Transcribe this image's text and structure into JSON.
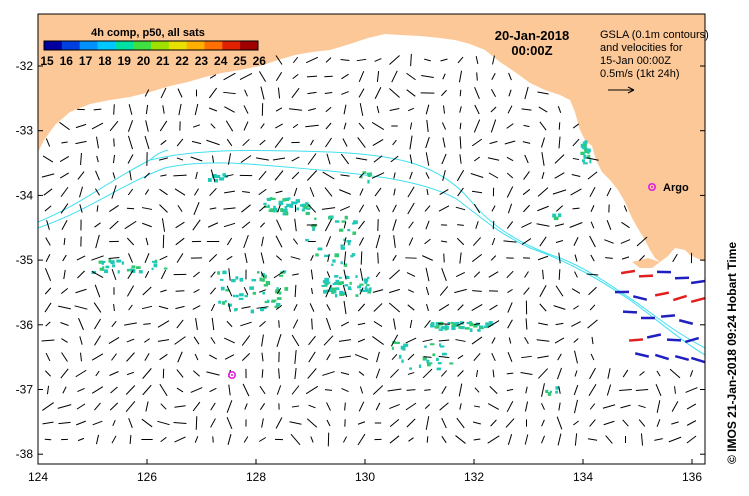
{
  "map": {
    "date_line1": "20-Jan-2018",
    "date_line2": "00:00Z",
    "colorbar_title": "4h comp, p50, all sats",
    "colorbar_ticks": [
      "15",
      "16",
      "17",
      "18",
      "19",
      "20",
      "21",
      "22",
      "23",
      "24",
      "25",
      "26"
    ],
    "colorbar_colors": [
      "#0000a0",
      "#0040e0",
      "#0090ff",
      "#00c8ff",
      "#00e0a0",
      "#40e040",
      "#a0e000",
      "#e8e000",
      "#ffb000",
      "#ff7000",
      "#e02000",
      "#a00000"
    ],
    "gsla_text": [
      "GSLA (0.1m contours)",
      "and velocities for",
      "15-Jan 00:00Z",
      "0.5m/s (1kt 24h)"
    ],
    "argo_label": "Argo",
    "credit": "© IMOS 21-Jan-2018 09:24 Hobart Time",
    "lon_ticks": [
      "124",
      "126",
      "128",
      "130",
      "132",
      "134",
      "136"
    ],
    "lat_ticks": [
      "-32",
      "-33",
      "-34",
      "-35",
      "-36",
      "-37",
      "-38"
    ],
    "land_color": "#fcc898",
    "contour_color": "#40e0f0",
    "sst_color": "#20c8b8",
    "argo_color": "#e020e0"
  }
}
